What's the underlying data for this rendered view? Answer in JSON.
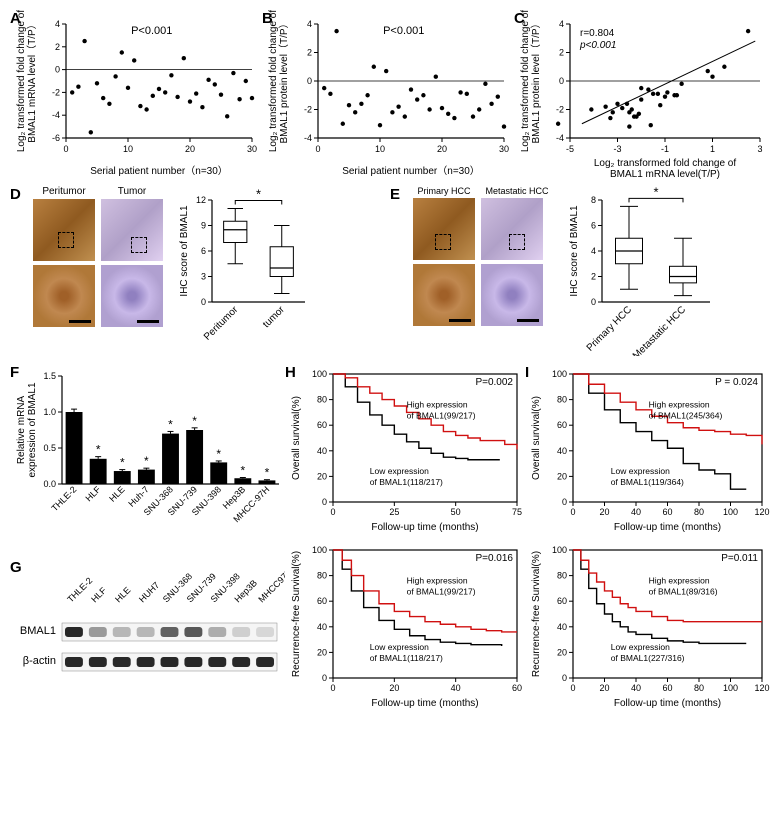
{
  "figure_width": 780,
  "figure_height": 838,
  "panels": {
    "A": {
      "label": "A",
      "type": "scatter",
      "xlabel": "Serial patient number（n=30）",
      "ylabel": "Log₂ transformed fold change of\nBMAL1 mRNA level（T/P）",
      "xlim": [
        0,
        30
      ],
      "xticks": [
        0,
        10,
        20,
        30
      ],
      "ylim": [
        -6,
        4
      ],
      "yticks": [
        -6,
        -4,
        -2,
        0,
        2,
        4
      ],
      "annotation": "P<0.001",
      "axis_color": "#000000",
      "point_color": "#000000",
      "point_radius": 2.2,
      "points": [
        [
          1,
          -2.0
        ],
        [
          2,
          -1.5
        ],
        [
          3,
          2.5
        ],
        [
          4,
          -5.5
        ],
        [
          5,
          -1.2
        ],
        [
          6,
          -2.5
        ],
        [
          7,
          -3.0
        ],
        [
          8,
          -0.6
        ],
        [
          9,
          1.5
        ],
        [
          10,
          -1.6
        ],
        [
          11,
          0.8
        ],
        [
          12,
          -3.2
        ],
        [
          13,
          -3.5
        ],
        [
          14,
          -2.3
        ],
        [
          15,
          -1.7
        ],
        [
          16,
          -2.0
        ],
        [
          17,
          -0.5
        ],
        [
          18,
          -2.4
        ],
        [
          19,
          1.0
        ],
        [
          20,
          -2.8
        ],
        [
          21,
          -2.1
        ],
        [
          22,
          -3.3
        ],
        [
          23,
          -0.9
        ],
        [
          24,
          -1.3
        ],
        [
          25,
          -2.2
        ],
        [
          26,
          -4.1
        ],
        [
          27,
          -0.3
        ],
        [
          28,
          -2.6
        ],
        [
          29,
          -1.0
        ],
        [
          30,
          -2.5
        ]
      ]
    },
    "B": {
      "label": "B",
      "type": "scatter",
      "xlabel": "Serial patient number（n=30）",
      "ylabel": "Log₂ transformed fold change of\nBMAL1 protein level（T/P）",
      "xlim": [
        0,
        30
      ],
      "xticks": [
        0,
        10,
        20,
        30
      ],
      "ylim": [
        -4,
        4
      ],
      "yticks": [
        -4,
        -2,
        0,
        2,
        4
      ],
      "annotation": "P<0.001",
      "axis_color": "#000000",
      "point_color": "#000000",
      "point_radius": 2.2,
      "points": [
        [
          1,
          -0.5
        ],
        [
          2,
          -0.9
        ],
        [
          3,
          3.5
        ],
        [
          4,
          -3.0
        ],
        [
          5,
          -1.7
        ],
        [
          6,
          -2.2
        ],
        [
          7,
          -1.6
        ],
        [
          8,
          -1.0
        ],
        [
          9,
          1.0
        ],
        [
          10,
          -3.1
        ],
        [
          11,
          0.7
        ],
        [
          12,
          -2.2
        ],
        [
          13,
          -1.8
        ],
        [
          14,
          -2.5
        ],
        [
          15,
          -0.6
        ],
        [
          16,
          -1.3
        ],
        [
          17,
          -1.0
        ],
        [
          18,
          -2.0
        ],
        [
          19,
          0.3
        ],
        [
          20,
          -1.9
        ],
        [
          21,
          -2.3
        ],
        [
          22,
          -2.6
        ],
        [
          23,
          -0.8
        ],
        [
          24,
          -0.9
        ],
        [
          25,
          -2.5
        ],
        [
          26,
          -2.0
        ],
        [
          27,
          -0.2
        ],
        [
          28,
          -1.6
        ],
        [
          29,
          -1.1
        ],
        [
          30,
          -3.2
        ]
      ]
    },
    "C": {
      "label": "C",
      "type": "scatter-line",
      "xlabel": "Log₂ transformed fold change of\nBMAL1 mRNA level(T/P)",
      "ylabel": "Log₂ transformed fold change of\nBMAL1 protein level（T/P）",
      "xlim": [
        -5,
        3
      ],
      "xticks": [
        -5,
        -3,
        -1,
        1,
        3
      ],
      "ylim": [
        -4,
        4
      ],
      "yticks": [
        -4,
        -2,
        0,
        2,
        4
      ],
      "annotation_r": "r=0.804",
      "annotation_p": "p<0.001",
      "axis_color": "#000000",
      "point_color": "#000000",
      "point_radius": 2.2,
      "line_color": "#000000",
      "line_width": 1,
      "fit_line": {
        "x1": -4.5,
        "y1": -3.0,
        "x2": 2.8,
        "y2": 2.8
      },
      "points": [
        [
          -2.0,
          -0.5
        ],
        [
          -1.5,
          -0.9
        ],
        [
          2.5,
          3.5
        ],
        [
          -5.5,
          -3.0
        ],
        [
          -1.2,
          -1.7
        ],
        [
          -2.5,
          -2.2
        ],
        [
          -3.0,
          -1.6
        ],
        [
          -0.6,
          -1.0
        ],
        [
          1.5,
          1.0
        ],
        [
          -1.6,
          -3.1
        ],
        [
          0.8,
          0.7
        ],
        [
          -3.2,
          -2.2
        ],
        [
          -3.5,
          -1.8
        ],
        [
          -2.3,
          -2.5
        ],
        [
          -1.7,
          -0.6
        ],
        [
          -2.0,
          -1.3
        ],
        [
          -0.5,
          -1.0
        ],
        [
          -2.4,
          -2.0
        ],
        [
          1.0,
          0.3
        ],
        [
          -2.8,
          -1.9
        ],
        [
          -2.1,
          -2.3
        ],
        [
          -3.3,
          -2.6
        ],
        [
          -0.9,
          -0.8
        ],
        [
          -1.3,
          -0.9
        ],
        [
          -2.2,
          -2.5
        ],
        [
          -4.1,
          -2.0
        ],
        [
          -0.3,
          -0.2
        ],
        [
          -2.6,
          -1.6
        ],
        [
          -1.0,
          -1.1
        ],
        [
          -2.5,
          -3.2
        ]
      ]
    },
    "D": {
      "label": "D",
      "type": "ihc-box",
      "ihc_headers": [
        "Peritumor",
        "Tumor"
      ],
      "tile_size": 62,
      "boxplot": {
        "ylabel": "IHC score of BMAL1",
        "ylim": [
          0,
          12
        ],
        "yticks": [
          0,
          3,
          6,
          9,
          12
        ],
        "categories": [
          "Peritumor",
          "tumor"
        ],
        "boxes": [
          {
            "min": 4.5,
            "q1": 7.0,
            "median": 8.5,
            "q3": 9.5,
            "max": 11.0
          },
          {
            "min": 1.0,
            "q1": 3.0,
            "median": 4.0,
            "q3": 6.5,
            "max": 9.0
          }
        ],
        "sig_label": "*",
        "box_color": "#000000",
        "box_fill": "#ffffff"
      }
    },
    "E": {
      "label": "E",
      "type": "ihc-box",
      "ihc_headers": [
        "Primary HCC",
        "Metastatic HCC"
      ],
      "tile_size": 62,
      "boxplot": {
        "ylabel": "IHC score of BMAL1",
        "ylim": [
          0,
          8
        ],
        "yticks": [
          0,
          2,
          4,
          6,
          8
        ],
        "categories": [
          "Primary HCC",
          "Metastatic HCC"
        ],
        "boxes": [
          {
            "min": 1.0,
            "q1": 3.0,
            "median": 4.0,
            "q3": 5.0,
            "max": 7.5
          },
          {
            "min": 0.5,
            "q1": 1.5,
            "median": 2.0,
            "q3": 2.8,
            "max": 5.0
          }
        ],
        "sig_label": "*",
        "box_color": "#000000",
        "box_fill": "#ffffff"
      }
    },
    "F": {
      "label": "F",
      "type": "bar",
      "ylabel": "Relative mRNA\nexpression of BMAL1",
      "ylim": [
        0,
        1.5
      ],
      "yticks": [
        0.0,
        0.5,
        1.0,
        1.5
      ],
      "categories": [
        "THLE-2",
        "HLF",
        "HLE",
        "Huh-7",
        "SNU-368",
        "SNU-739",
        "SNU-398",
        "Hep3B",
        "MHCC-97H"
      ],
      "values": [
        1.0,
        0.35,
        0.18,
        0.2,
        0.7,
        0.75,
        0.3,
        0.08,
        0.05
      ],
      "errors": [
        0.04,
        0.03,
        0.02,
        0.02,
        0.03,
        0.03,
        0.02,
        0.01,
        0.01
      ],
      "sig": [
        "",
        "*",
        "*",
        "*",
        "*",
        "*",
        "*",
        "*",
        "*"
      ],
      "bar_color": "#000000",
      "bar_width": 0.7,
      "error_color": "#000000"
    },
    "G": {
      "label": "G",
      "type": "western-blot",
      "lanes": [
        "THLE-2",
        "HLF",
        "HLE",
        "HUH7",
        "SNU-368",
        "SNU-739",
        "SNU-398",
        "Hep3B",
        "MHCC97H"
      ],
      "bands": [
        {
          "label": "BMAL1",
          "intensities": [
            1.0,
            0.4,
            0.25,
            0.25,
            0.7,
            0.75,
            0.3,
            0.12,
            0.08
          ]
        },
        {
          "label": "β-actin",
          "intensities": [
            1.0,
            1.0,
            1.0,
            1.0,
            1.0,
            1.0,
            1.0,
            1.0,
            1.0
          ]
        }
      ]
    },
    "H": {
      "label": "H",
      "type": "km-pair",
      "top": {
        "ylabel": "Overall survival(%)",
        "xlabel": "Follow-up time (months)",
        "xlim": [
          0,
          75
        ],
        "xticks": [
          0,
          25,
          50,
          75
        ],
        "ylim": [
          0,
          100
        ],
        "yticks": [
          0,
          20,
          40,
          60,
          80,
          100
        ],
        "p_annotation": "P=0.002",
        "high_label": "High expression\nof BMAL1(99/217)",
        "low_label": "Low expression\nof BMAL1(118/217)",
        "high_color": "#d01010",
        "low_color": "#000000",
        "high_curve": [
          [
            0,
            100
          ],
          [
            5,
            97
          ],
          [
            10,
            90
          ],
          [
            15,
            85
          ],
          [
            20,
            80
          ],
          [
            25,
            75
          ],
          [
            30,
            70
          ],
          [
            35,
            65
          ],
          [
            40,
            60
          ],
          [
            45,
            55
          ],
          [
            50,
            52
          ],
          [
            55,
            50
          ],
          [
            60,
            48
          ],
          [
            70,
            45
          ],
          [
            75,
            41
          ]
        ],
        "low_curve": [
          [
            0,
            100
          ],
          [
            5,
            90
          ],
          [
            10,
            78
          ],
          [
            15,
            68
          ],
          [
            20,
            60
          ],
          [
            25,
            53
          ],
          [
            30,
            47
          ],
          [
            35,
            42
          ],
          [
            40,
            38
          ],
          [
            45,
            35
          ],
          [
            50,
            34
          ],
          [
            55,
            33
          ],
          [
            60,
            33
          ],
          [
            68,
            33
          ]
        ]
      },
      "bottom": {
        "ylabel": "Recurrence-free Survival(%)",
        "xlabel": "Follow-up time (months)",
        "xlim": [
          0,
          60
        ],
        "xticks": [
          0,
          20,
          40,
          60
        ],
        "ylim": [
          0,
          100
        ],
        "yticks": [
          0,
          20,
          40,
          60,
          80,
          100
        ],
        "p_annotation": "P=0.016",
        "high_label": "High expression\nof BMAL1(99/217)",
        "low_label": "Low expression\nof BMAL1(118/217)",
        "high_color": "#d01010",
        "low_color": "#000000",
        "high_curve": [
          [
            0,
            100
          ],
          [
            3,
            92
          ],
          [
            6,
            80
          ],
          [
            10,
            68
          ],
          [
            15,
            58
          ],
          [
            20,
            52
          ],
          [
            25,
            48
          ],
          [
            30,
            44
          ],
          [
            35,
            42
          ],
          [
            40,
            40
          ],
          [
            45,
            38
          ],
          [
            50,
            37
          ],
          [
            55,
            36
          ],
          [
            60,
            36
          ]
        ],
        "low_curve": [
          [
            0,
            100
          ],
          [
            3,
            85
          ],
          [
            6,
            68
          ],
          [
            10,
            55
          ],
          [
            15,
            45
          ],
          [
            20,
            38
          ],
          [
            25,
            33
          ],
          [
            30,
            30
          ],
          [
            35,
            28
          ],
          [
            40,
            27
          ],
          [
            45,
            26
          ],
          [
            50,
            26
          ],
          [
            55,
            25
          ]
        ]
      }
    },
    "I": {
      "label": "I",
      "type": "km-pair",
      "top": {
        "ylabel": "Overall survival(%)",
        "xlabel": "Follow-up time (months)",
        "xlim": [
          0,
          120
        ],
        "xticks": [
          0,
          20,
          40,
          60,
          80,
          100,
          120
        ],
        "ylim": [
          0,
          100
        ],
        "yticks": [
          0,
          20,
          40,
          60,
          80,
          100
        ],
        "p_annotation": "P = 0.024",
        "high_label": "High expression\nof BMAL1(245/364)",
        "low_label": "Low expression\nof BMAL1(119/364)",
        "high_color": "#d01010",
        "low_color": "#000000",
        "high_curve": [
          [
            0,
            100
          ],
          [
            10,
            92
          ],
          [
            20,
            85
          ],
          [
            30,
            78
          ],
          [
            40,
            72
          ],
          [
            50,
            67
          ],
          [
            60,
            62
          ],
          [
            70,
            58
          ],
          [
            80,
            56
          ],
          [
            90,
            55
          ],
          [
            100,
            53
          ],
          [
            110,
            52
          ],
          [
            120,
            45
          ]
        ],
        "low_curve": [
          [
            0,
            100
          ],
          [
            10,
            85
          ],
          [
            20,
            72
          ],
          [
            30,
            62
          ],
          [
            40,
            55
          ],
          [
            50,
            48
          ],
          [
            60,
            42
          ],
          [
            70,
            30
          ],
          [
            80,
            25
          ],
          [
            90,
            22
          ],
          [
            100,
            10
          ],
          [
            110,
            10
          ]
        ]
      },
      "bottom": {
        "ylabel": "Recurrence-free Survival(%)",
        "xlabel": "Follow-up time (months)",
        "xlim": [
          0,
          120
        ],
        "xticks": [
          0,
          20,
          40,
          60,
          80,
          100,
          120
        ],
        "ylim": [
          0,
          100
        ],
        "yticks": [
          0,
          20,
          40,
          60,
          80,
          100
        ],
        "p_annotation": "P=0.011",
        "high_label": "High expression\nof BMAL1(89/316)",
        "low_label": "Low expression\nof BMAL1(227/316)",
        "high_color": "#d01010",
        "low_color": "#000000",
        "high_curve": [
          [
            0,
            100
          ],
          [
            5,
            92
          ],
          [
            10,
            82
          ],
          [
            15,
            75
          ],
          [
            20,
            68
          ],
          [
            25,
            63
          ],
          [
            30,
            58
          ],
          [
            35,
            55
          ],
          [
            40,
            52
          ],
          [
            50,
            48
          ],
          [
            60,
            45
          ],
          [
            70,
            44
          ],
          [
            80,
            44
          ],
          [
            120,
            44
          ]
        ],
        "low_curve": [
          [
            0,
            100
          ],
          [
            5,
            85
          ],
          [
            10,
            70
          ],
          [
            15,
            58
          ],
          [
            20,
            50
          ],
          [
            25,
            44
          ],
          [
            30,
            40
          ],
          [
            35,
            36
          ],
          [
            40,
            34
          ],
          [
            50,
            31
          ],
          [
            60,
            29
          ],
          [
            70,
            28
          ],
          [
            80,
            27
          ],
          [
            90,
            27
          ],
          [
            100,
            27
          ],
          [
            110,
            27
          ]
        ]
      }
    }
  }
}
